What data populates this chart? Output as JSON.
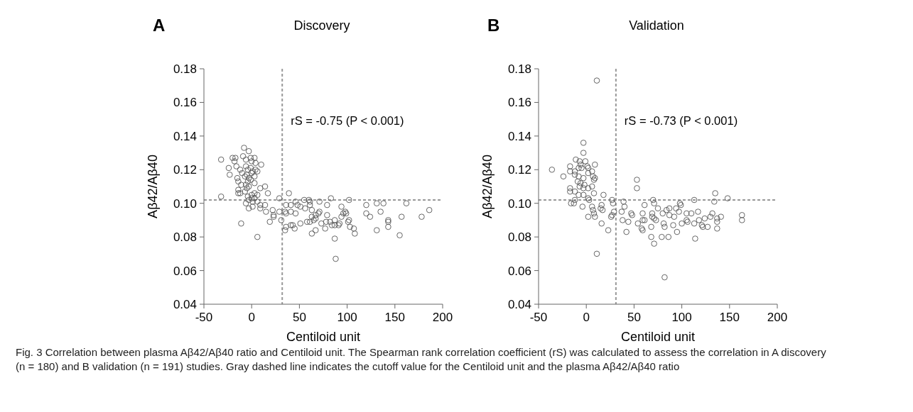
{
  "chart_data": [
    {
      "type": "scatter",
      "title": "Discovery",
      "xlabel": "Centiloid unit",
      "ylabel": "Aβ42/Aβ40",
      "color": "#555555",
      "marker": "circle",
      "xlim": [
        -50,
        200
      ],
      "xticks": [
        -50,
        0,
        50,
        100,
        150,
        200
      ],
      "ylim": [
        0.04,
        0.18
      ],
      "yticks": [
        0.04,
        0.06,
        0.08,
        {
          "value": 0.1,
          "label": "0.10"
        },
        0.12,
        0.14,
        0.16,
        0.18
      ],
      "ref_lines": [
        {
          "axis": "x",
          "value": 32,
          "color": "#999999",
          "line_style": "dashed"
        },
        {
          "axis": "y",
          "value": 0.102,
          "color": "#999999",
          "line_style": "dashed"
        }
      ],
      "annotations": [
        "A",
        "rS = -0.75 (P < 0.001)"
      ],
      "x": [
        -32,
        -32,
        -24,
        -23,
        -20,
        -17,
        -18,
        -16,
        -12,
        -15,
        -14,
        -11,
        -14,
        -14,
        -12,
        -8,
        -9,
        -3,
        -6,
        -1,
        3,
        0,
        4,
        10,
        -6,
        -4,
        -1,
        1,
        4,
        6,
        -10,
        -7,
        -5,
        -3,
        0,
        3,
        -1,
        -6,
        -4,
        -5,
        -7,
        -3,
        3,
        -4,
        0,
        3,
        6,
        3,
        -6,
        -3,
        0,
        1,
        -3,
        1,
        6,
        -11,
        6,
        9,
        14,
        17,
        9,
        14,
        9,
        15,
        19,
        22,
        23,
        23,
        29,
        29,
        31,
        39,
        36,
        41,
        35,
        36,
        41,
        46,
        36,
        41,
        43,
        45,
        35,
        46,
        48,
        51,
        55,
        60,
        56,
        61,
        61,
        51,
        58,
        61,
        63,
        63,
        65,
        67,
        67,
        70,
        71,
        71,
        63,
        67,
        73,
        77,
        78,
        79,
        79,
        83,
        82,
        84,
        87,
        87,
        87,
        88,
        91,
        92,
        94,
        94,
        96,
        98,
        99,
        101,
        102,
        102,
        103,
        107,
        108,
        120,
        120,
        124,
        131,
        131,
        135,
        138,
        143,
        143,
        143,
        155,
        157,
        162,
        178,
        186
      ],
      "values": [
        0.126,
        0.104,
        0.121,
        0.117,
        0.127,
        0.127,
        0.125,
        0.122,
        0.12,
        0.115,
        0.113,
        0.111,
        0.108,
        0.106,
        0.106,
        0.133,
        0.128,
        0.131,
        0.126,
        0.127,
        0.127,
        0.125,
        0.124,
        0.123,
        0.122,
        0.12,
        0.121,
        0.119,
        0.12,
        0.119,
        0.118,
        0.116,
        0.117,
        0.115,
        0.118,
        0.116,
        0.114,
        0.111,
        0.113,
        0.109,
        0.107,
        0.11,
        0.112,
        0.104,
        0.105,
        0.106,
        0.105,
        0.103,
        0.1,
        0.102,
        0.103,
        0.101,
        0.097,
        0.098,
        0.101,
        0.088,
        0.08,
        0.109,
        0.11,
        0.106,
        0.099,
        0.099,
        0.097,
        0.095,
        0.089,
        0.096,
        0.093,
        0.092,
        0.103,
        0.095,
        0.09,
        0.106,
        0.099,
        0.099,
        0.095,
        0.094,
        0.095,
        0.094,
        0.086,
        0.087,
        0.087,
        0.085,
        0.084,
        0.101,
        0.099,
        0.098,
        0.102,
        0.102,
        0.097,
        0.099,
        0.101,
        0.088,
        0.089,
        0.089,
        0.096,
        0.092,
        0.09,
        0.091,
        0.093,
        0.094,
        0.095,
        0.101,
        0.082,
        0.084,
        0.088,
        0.085,
        0.089,
        0.093,
        0.099,
        0.103,
        0.089,
        0.087,
        0.09,
        0.087,
        0.079,
        0.067,
        0.087,
        0.088,
        0.092,
        0.098,
        0.094,
        0.095,
        0.094,
        0.089,
        0.09,
        0.102,
        0.086,
        0.085,
        0.082,
        0.099,
        0.094,
        0.092,
        0.1,
        0.084,
        0.095,
        0.1,
        0.09,
        0.089,
        0.086,
        0.081,
        0.092,
        0.1,
        0.092,
        0.096
      ]
    },
    {
      "type": "scatter",
      "title": "Validation",
      "xlabel": "Centiloid unit",
      "ylabel": "Aβ42/Aβ40",
      "color": "#555555",
      "marker": "circle",
      "xlim": [
        -50,
        200
      ],
      "xticks": [
        -50,
        0,
        50,
        100,
        150,
        200
      ],
      "ylim": [
        0.04,
        0.18
      ],
      "yticks": [
        0.04,
        0.06,
        0.08,
        {
          "value": 0.1,
          "label": "0.10"
        },
        0.12,
        0.14,
        0.16,
        0.18
      ],
      "ref_lines": [
        {
          "axis": "x",
          "value": 31,
          "color": "#999999",
          "line_style": "dashed"
        },
        {
          "axis": "y",
          "value": 0.102,
          "color": "#999999",
          "line_style": "dashed"
        }
      ],
      "annotations": [
        "B",
        "rS = -0.73 (P < 0.001)",
        "Fig. 3 Correlation between plasma Aβ42/Aβ40 ratio and Centiloid unit. The Spearman rank correlation coefficient (rS) was calculated to assess the correlation in A discovery (n = 180) and B validation (n = 191) studies. Gray dashed line indicates the cutoff value for the Centiloid unit and the plasma Aβ42/Aβ40 ratio"
      ],
      "x": [
        11,
        -36,
        -24,
        -3,
        -3,
        -17,
        -17,
        -11,
        -7,
        -6,
        -12,
        -8,
        -5,
        -1,
        1,
        2,
        9,
        -12,
        -8,
        -3,
        2,
        6,
        7,
        9,
        8,
        -9,
        -6,
        -2,
        2,
        6,
        -3,
        -7,
        -17,
        -17,
        -12,
        -8,
        -3,
        2,
        8,
        3,
        -16,
        -13,
        -12,
        -4,
        6,
        7,
        8,
        9,
        2,
        16,
        18,
        15,
        17,
        16,
        23,
        11,
        27,
        28,
        27,
        26,
        29,
        37,
        39,
        40,
        38,
        42,
        44,
        47,
        48,
        53,
        53,
        54,
        61,
        59,
        59,
        61,
        58,
        59,
        69,
        69,
        70,
        71,
        71,
        73,
        68,
        68,
        71,
        75,
        80,
        81,
        82,
        79,
        86,
        82,
        84,
        87,
        87,
        91,
        92,
        94,
        95,
        97,
        98,
        99,
        100,
        105,
        105,
        106,
        110,
        113,
        113,
        114,
        117,
        118,
        121,
        122,
        124,
        127,
        130,
        132,
        134,
        135,
        137,
        137,
        137,
        141,
        148,
        163,
        163
      ],
      "values": [
        0.173,
        0.12,
        0.116,
        0.136,
        0.13,
        0.122,
        0.119,
        0.126,
        0.125,
        0.123,
        0.119,
        0.121,
        0.121,
        0.125,
        0.122,
        0.121,
        0.123,
        0.117,
        0.116,
        0.115,
        0.118,
        0.119,
        0.116,
        0.115,
        0.114,
        0.113,
        0.112,
        0.111,
        0.109,
        0.11,
        0.109,
        0.11,
        0.109,
        0.107,
        0.107,
        0.105,
        0.105,
        0.103,
        0.106,
        0.102,
        0.1,
        0.1,
        0.102,
        0.098,
        0.098,
        0.096,
        0.094,
        0.092,
        0.092,
        0.099,
        0.105,
        0.097,
        0.096,
        0.088,
        0.084,
        0.07,
        0.102,
        0.1,
        0.093,
        0.092,
        0.095,
        0.095,
        0.101,
        0.098,
        0.09,
        0.083,
        0.089,
        0.094,
        0.093,
        0.114,
        0.109,
        0.088,
        0.099,
        0.094,
        0.09,
        0.09,
        0.085,
        0.084,
        0.094,
        0.092,
        0.102,
        0.1,
        0.091,
        0.09,
        0.086,
        0.08,
        0.076,
        0.097,
        0.094,
        0.088,
        0.086,
        0.08,
        0.08,
        0.056,
        0.096,
        0.093,
        0.097,
        0.087,
        0.092,
        0.097,
        0.083,
        0.095,
        0.1,
        0.099,
        0.088,
        0.09,
        0.094,
        0.089,
        0.094,
        0.102,
        0.088,
        0.079,
        0.095,
        0.09,
        0.087,
        0.086,
        0.091,
        0.086,
        0.092,
        0.094,
        0.101,
        0.106,
        0.091,
        0.089,
        0.085,
        0.092,
        0.103,
        0.093,
        0.09
      ]
    }
  ]
}
